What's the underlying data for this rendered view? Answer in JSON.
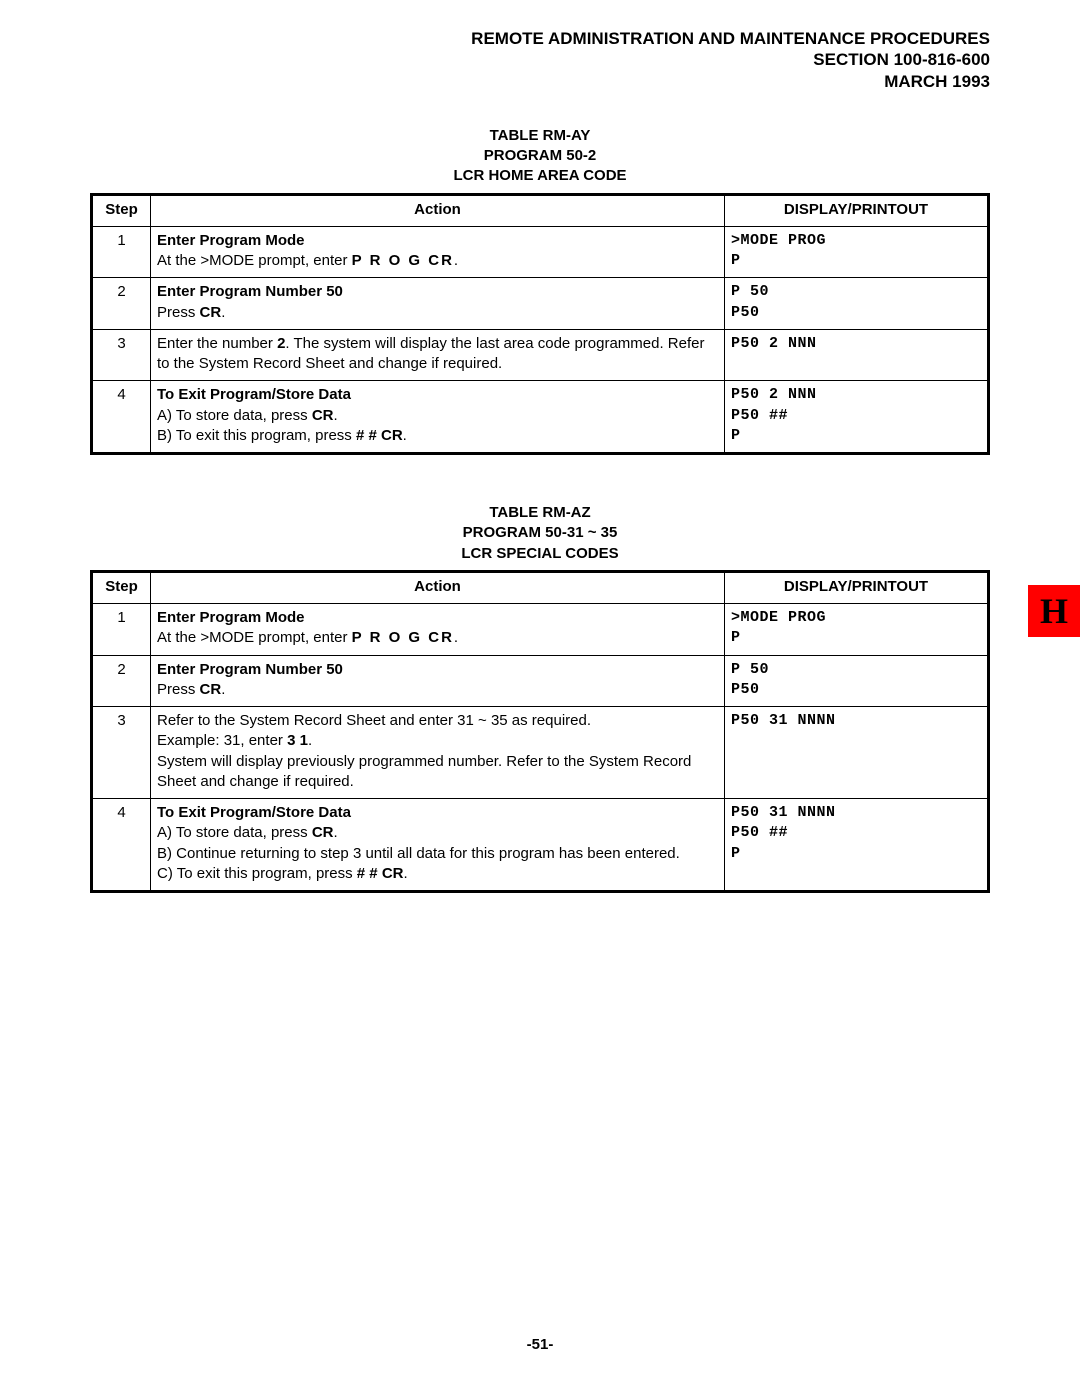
{
  "header": {
    "title": "REMOTE ADMINISTRATION AND MAINTENANCE PROCEDURES",
    "section": "SECTION 100-816-600",
    "date": "MARCH 1993"
  },
  "side_tab": {
    "letter": "H",
    "bg": "#ff0000",
    "fg": "#000000"
  },
  "page_number": "-51-",
  "tables": [
    {
      "id": "rm-ay",
      "title_lines": [
        "TABLE RM-AY",
        "PROGRAM 50-2",
        "LCR HOME AREA CODE"
      ],
      "columns": [
        "Step",
        "Action",
        "DISPLAY/PRINTOUT"
      ],
      "rows": [
        {
          "step": "1",
          "action_title": "Enter Program Mode",
          "action_body": "At the >MODE prompt, enter ",
          "action_tail_bold_spaced": "P R O G CR",
          "action_tail_after": ".",
          "display": [
            ">MODE PROG",
            "P"
          ]
        },
        {
          "step": "2",
          "action_title": "Enter Program Number 50",
          "action_body": "Press ",
          "action_tail_bold": "CR",
          "action_tail_after": ".",
          "display": [
            "P 50",
            "P50"
          ]
        },
        {
          "step": "3",
          "action_plain_pre": "Enter the number ",
          "action_mid_bold": "2",
          "action_plain_post": ". The system will display the last area code programmed. Refer to the System Record Sheet and change if required.",
          "display": [
            "P50 2 NNN"
          ]
        },
        {
          "step": "4",
          "action_title": "To Exit Program/Store Data",
          "sub_a_pre": "A)  To store data, press ",
          "sub_a_bold": "CR",
          "sub_a_post": ".",
          "sub_b_pre": "B)  To exit this program, press ",
          "sub_b_bold": "# # CR",
          "sub_b_post": ".",
          "display": [
            "P50 2 NNN",
            "P50 ##",
            "P"
          ]
        }
      ]
    },
    {
      "id": "rm-az",
      "title_lines": [
        "TABLE RM-AZ",
        "PROGRAM 50-31 ~ 35",
        "LCR SPECIAL CODES"
      ],
      "columns": [
        "Step",
        "Action",
        "DISPLAY/PRINTOUT"
      ],
      "rows": [
        {
          "step": "1",
          "action_title": "Enter Program Mode",
          "action_body": "At the >MODE prompt, enter ",
          "action_tail_bold_spaced": "P R O G CR",
          "action_tail_after": ".",
          "display": [
            ">MODE PROG",
            "P"
          ]
        },
        {
          "step": "2",
          "action_title": "Enter Program Number 50",
          "action_body": "Press ",
          "action_tail_bold": "CR",
          "action_tail_after": ".",
          "display": [
            "P 50",
            "P50"
          ]
        },
        {
          "step": "3",
          "action_line1_pre": "Refer to the System Record Sheet and enter 31 ~ 35 as required.",
          "action_line2_pre": "Example: 31, enter ",
          "action_line2_bold": "3 1",
          "action_line2_post": ".",
          "action_line3": "System will display previously programmed number. Refer to the System Record Sheet and change if required.",
          "display": [
            "P50 31 NNNN"
          ]
        },
        {
          "step": "4",
          "action_title": "To Exit Program/Store Data",
          "sub_a_pre": "A)  To store data, press ",
          "sub_a_bold": "CR",
          "sub_a_post": ".",
          "sub_b_pre": "B)  Continue returning to step 3 until all data for this program has been entered.",
          "sub_c_pre": "C)  To exit this program, press ",
          "sub_c_bold": "# # CR",
          "sub_c_post": ".",
          "display": [
            "P50 31 NNNN",
            "P50 ##",
            "P"
          ]
        }
      ]
    }
  ]
}
